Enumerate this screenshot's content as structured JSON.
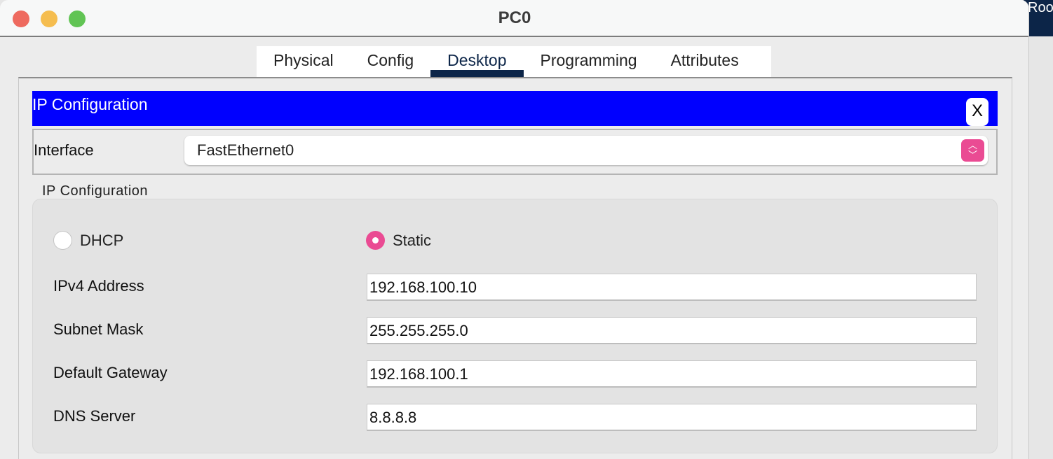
{
  "background_app_text": "Roo",
  "window": {
    "title": "PC0"
  },
  "tabs": [
    {
      "label": "Physical"
    },
    {
      "label": "Config"
    },
    {
      "label": "Desktop",
      "active": true
    },
    {
      "label": "Programming"
    },
    {
      "label": "Attributes"
    }
  ],
  "ip_config": {
    "header": "IP Configuration",
    "close_label": "X",
    "interface_label": "Interface",
    "interface_value": "FastEthernet0",
    "group_label": "IP Configuration",
    "mode": {
      "dhcp_label": "DHCP",
      "static_label": "Static",
      "selected": "Static"
    },
    "fields": [
      {
        "label": "IPv4 Address",
        "value": "192.168.100.10"
      },
      {
        "label": "Subnet Mask",
        "value": "255.255.255.0"
      },
      {
        "label": "Default Gateway",
        "value": "192.168.100.1"
      },
      {
        "label": "DNS Server",
        "value": "8.8.8.8"
      }
    ]
  },
  "colors": {
    "header_blue": "#0000ff",
    "accent_pink": "#ea4b93",
    "tab_active": "#0c2548"
  }
}
